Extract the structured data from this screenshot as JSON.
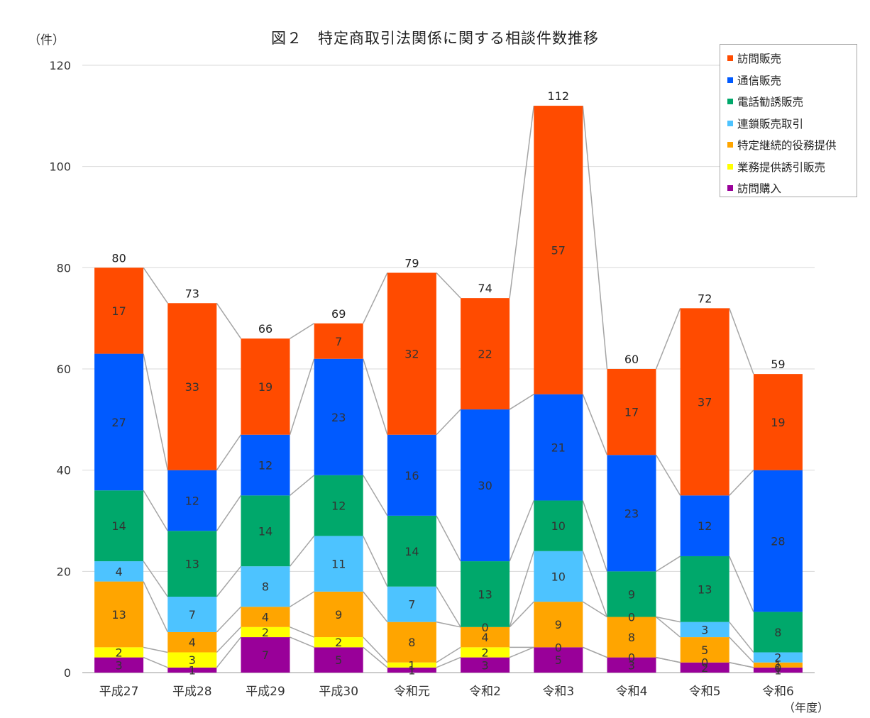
{
  "title": "図２　特定商取引法関係に関する相談件数推移",
  "y_unit": "（件）",
  "x_unit": "（年度）",
  "chart_data": {
    "type": "bar",
    "stacked": true,
    "title": "図２　特定商取引法関係に関する相談件数推移",
    "ylabel": "（件）",
    "xlabel": "（年度）",
    "ylim": [
      0,
      120
    ],
    "yticks": [
      0,
      20,
      40,
      60,
      80,
      100,
      120
    ],
    "grid": true,
    "legend_position": "top-right",
    "categories": [
      "平成27",
      "平成28",
      "平成29",
      "平成30",
      "令和元",
      "令和2",
      "令和3",
      "令和4",
      "令和5",
      "令和6"
    ],
    "series": [
      {
        "name": "訪問購入",
        "color": "#990099",
        "values": [
          3,
          1,
          7,
          5,
          1,
          3,
          5,
          3,
          2,
          1
        ]
      },
      {
        "name": "業務提供誘引販売",
        "color": "#FFFF00",
        "values": [
          2,
          3,
          2,
          2,
          1,
          2,
          0,
          0,
          0,
          0
        ]
      },
      {
        "name": "特定継続的役務提供",
        "color": "#FFA500",
        "values": [
          13,
          4,
          4,
          9,
          8,
          4,
          9,
          8,
          5,
          1
        ]
      },
      {
        "name": "連鎖販売取引",
        "color": "#4DC3FF",
        "values": [
          4,
          7,
          8,
          11,
          7,
          0,
          10,
          0,
          3,
          2
        ]
      },
      {
        "name": "電話勧誘販売",
        "color": "#00A86B",
        "values": [
          14,
          13,
          14,
          12,
          14,
          13,
          10,
          9,
          13,
          8
        ]
      },
      {
        "name": "通信販売",
        "color": "#005AFF",
        "values": [
          27,
          12,
          12,
          23,
          16,
          30,
          21,
          23,
          12,
          28
        ]
      },
      {
        "name": "訪問販売",
        "color": "#FF4B00",
        "values": [
          17,
          33,
          19,
          7,
          32,
          22,
          57,
          17,
          37,
          19
        ]
      }
    ],
    "totals": [
      80,
      73,
      66,
      69,
      79,
      74,
      112,
      60,
      72,
      59
    ],
    "legend_order": [
      "訪問販売",
      "通信販売",
      "電話勧誘販売",
      "連鎖販売取引",
      "特定継続的役務提供",
      "業務提供誘引販売",
      "訪問購入"
    ]
  }
}
